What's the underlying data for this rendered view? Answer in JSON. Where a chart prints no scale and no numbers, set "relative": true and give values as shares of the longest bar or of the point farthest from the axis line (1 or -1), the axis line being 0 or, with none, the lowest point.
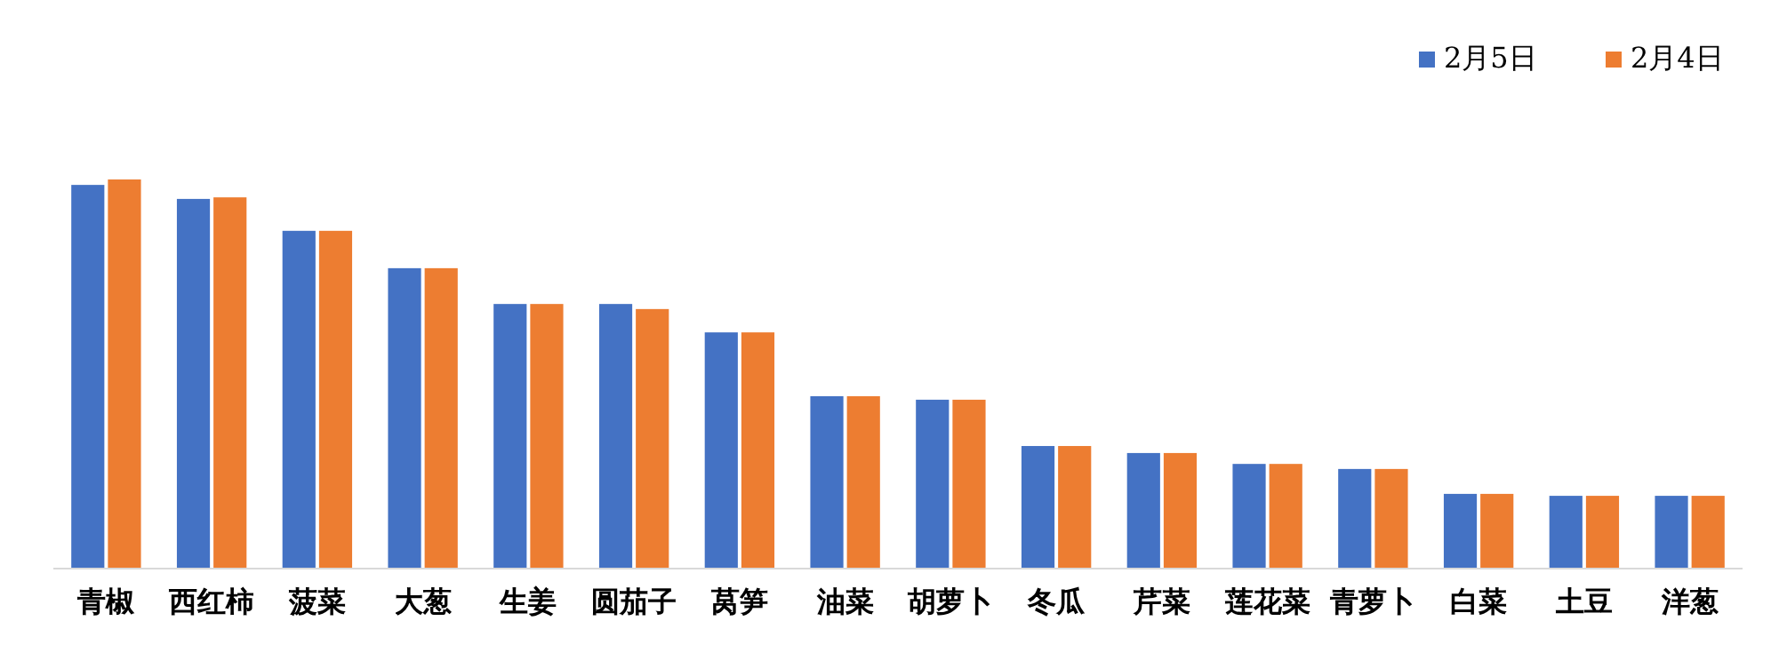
{
  "chart_data": {
    "type": "bar",
    "relative": true,
    "legend": "top right",
    "categories": [
      "青椒",
      "西红柿",
      "菠菜",
      "大葱",
      "生姜",
      "圆茄子",
      "莴笋",
      "油菜",
      "胡萝卜",
      "冬瓜",
      "芹菜",
      "莲花菜",
      "青萝卜",
      "白菜",
      "土豆",
      "洋葱"
    ],
    "series": [
      {
        "name": "2月5日",
        "color": "#4472c4",
        "values": [
          0.986,
          0.95,
          0.868,
          0.772,
          0.68,
          0.68,
          0.607,
          0.443,
          0.434,
          0.315,
          0.297,
          0.269,
          0.256,
          0.192,
          0.187,
          0.187
        ]
      },
      {
        "name": "2月4日",
        "color": "#ed7d31",
        "values": [
          1,
          0.954,
          0.868,
          0.772,
          0.68,
          0.667,
          0.607,
          0.443,
          0.434,
          0.315,
          0.297,
          0.269,
          0.256,
          0.192,
          0.187,
          0.187
        ]
      }
    ]
  }
}
